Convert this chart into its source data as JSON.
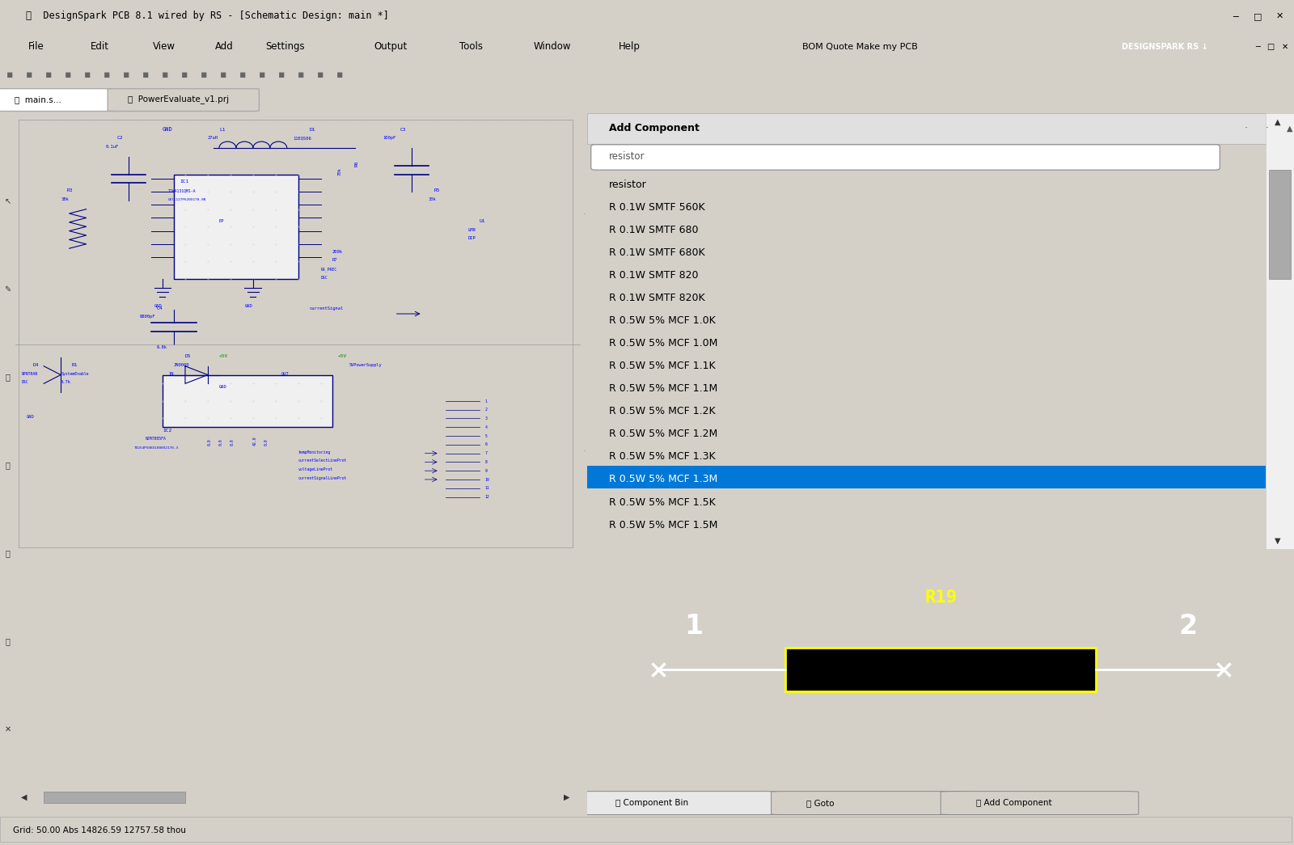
{
  "title_bar": "DesignSpark PCB 8.1 wired by RS - [Schematic Design: main *]",
  "title_bar_bg": "#f0f0f0",
  "title_bar_fg": "#000000",
  "menu_items": [
    "File",
    "Edit",
    "View",
    "Add",
    "Settings",
    "Output",
    "Tools",
    "Window",
    "Help"
  ],
  "bom_text": "BOM Quote Make my PCB",
  "designspark_badge": "DESIGNSPARK RS",
  "tab1": "main.s...",
  "tab2": "PowerEvaluate_v1.prj",
  "panel_title": "Add Component",
  "component_list": [
    "resistor",
    "R 0.1W SMTF 560K",
    "R 0.1W SMTF 680",
    "R 0.1W SMTF 680K",
    "R 0.1W SMTF 820",
    "R 0.1W SMTF 820K",
    "R 0.5W 5% MCF 1.0K",
    "R 0.5W 5% MCF 1.0M",
    "R 0.5W 5% MCF 1.1K",
    "R 0.5W 5% MCF 1.1M",
    "R 0.5W 5% MCF 1.2K",
    "R 0.5W 5% MCF 1.2M",
    "R 0.5W 5% MCF 1.3K",
    "R 0.5W 5% MCF 1.3M",
    "R 0.5W 5% MCF 1.5K",
    "R 0.5W 5% MCF 1.5M"
  ],
  "selected_component": "R 0.5W 5% MCF 1.3M",
  "selected_index": 13,
  "preview_label": "R19",
  "preview_bg": "#000000",
  "preview_fg": "#ffff00",
  "bottom_tabs": [
    "Component Bin",
    "Goto",
    "Add Component"
  ],
  "status_bar": "Grid: 50.00 Abs 14826.59 12757.58 thou",
  "schematic_bg": "#f5f5f5",
  "schematic_line_color": "#0000aa",
  "schematic_text_color": "#0000ff",
  "schematic_grid_color": "#cccccc",
  "window_bg": "#d4d0c8",
  "panel_bg": "#ffffff",
  "highlight_blue": "#0078d7"
}
